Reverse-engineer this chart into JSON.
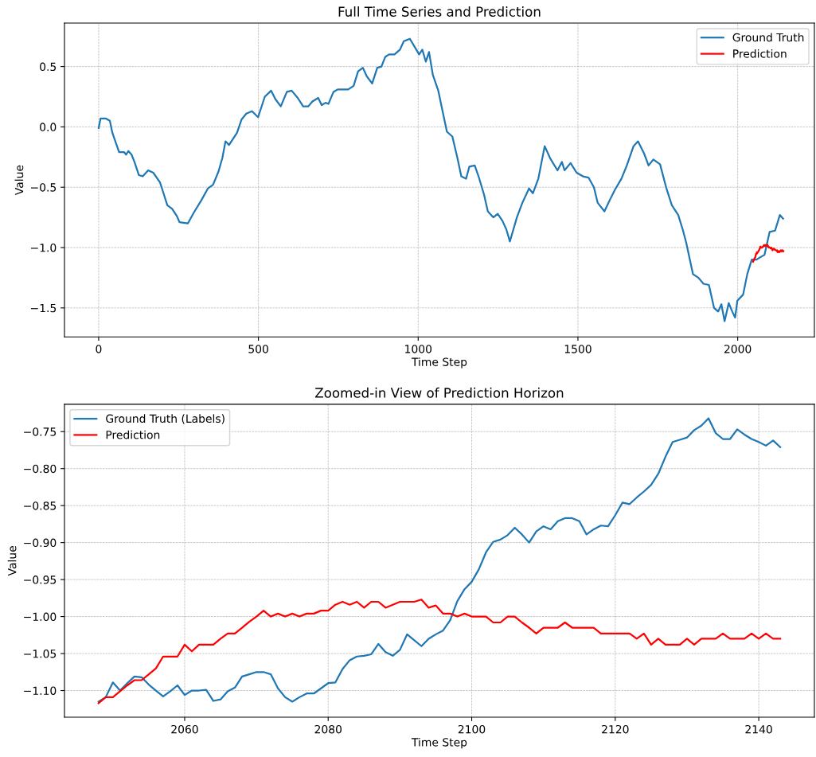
{
  "chart_data": [
    {
      "type": "line",
      "title": "Full Time Series and Prediction",
      "xlabel": "Time Step",
      "ylabel": "Value",
      "xlim": [
        -107,
        2240
      ],
      "ylim": [
        -1.74,
        0.86
      ],
      "xticks": [
        0,
        500,
        1000,
        1500,
        2000
      ],
      "yticks": [
        {
          "value": -1.5,
          "label": "−1.5"
        },
        {
          "value": -1.0,
          "label": "−1.0"
        },
        {
          "value": -0.5,
          "label": "−0.5"
        },
        {
          "value": 0.0,
          "label": "0.0"
        },
        {
          "value": 0.5,
          "label": "0.5"
        }
      ],
      "grid": true,
      "legend": "top right",
      "line_style": "solid",
      "marker": "none",
      "series": [
        {
          "name": "Ground Truth",
          "color": "#1f77b4",
          "x": [
            0,
            6,
            22,
            35,
            43,
            51,
            64,
            80,
            86,
            93,
            103,
            112,
            126,
            138,
            155,
            171,
            192,
            203,
            215,
            230,
            245,
            253,
            279,
            298,
            321,
            342,
            358,
            375,
            387,
            397,
            408,
            433,
            447,
            462,
            480,
            499,
            520,
            540,
            553,
            570,
            589,
            604,
            623,
            640,
            656,
            669,
            687,
            698,
            710,
            719,
            735,
            748,
            781,
            798,
            812,
            827,
            839,
            856,
            872,
            885,
            897,
            909,
            926,
            943,
            955,
            974,
            992,
            1003,
            1013,
            1024,
            1034,
            1046,
            1063,
            1078,
            1090,
            1107,
            1123,
            1135,
            1150,
            1160,
            1177,
            1189,
            1206,
            1218,
            1235,
            1249,
            1264,
            1276,
            1287,
            1309,
            1326,
            1347,
            1359,
            1376,
            1396,
            1413,
            1436,
            1450,
            1458,
            1477,
            1496,
            1516,
            1533,
            1550,
            1562,
            1583,
            1599,
            1616,
            1636,
            1653,
            1674,
            1688,
            1707,
            1721,
            1736,
            1757,
            1777,
            1794,
            1814,
            1829,
            1839,
            1860,
            1877,
            1893,
            1910,
            1926,
            1939,
            1949,
            1959,
            1972,
            1983,
            1992,
            1999,
            2017,
            2030,
            2044,
            2059,
            2071,
            2084,
            2100,
            2117,
            2132,
            2142
          ],
          "values": [
            -0.01,
            0.07,
            0.07,
            0.05,
            -0.05,
            -0.11,
            -0.21,
            -0.21,
            -0.23,
            -0.2,
            -0.23,
            -0.29,
            -0.4,
            -0.41,
            -0.36,
            -0.38,
            -0.46,
            -0.55,
            -0.65,
            -0.68,
            -0.74,
            -0.79,
            -0.8,
            -0.71,
            -0.61,
            -0.51,
            -0.48,
            -0.37,
            -0.26,
            -0.12,
            -0.15,
            -0.05,
            0.06,
            0.11,
            0.13,
            0.08,
            0.25,
            0.3,
            0.23,
            0.17,
            0.29,
            0.3,
            0.24,
            0.17,
            0.17,
            0.21,
            0.24,
            0.18,
            0.2,
            0.19,
            0.29,
            0.31,
            0.31,
            0.34,
            0.46,
            0.49,
            0.42,
            0.36,
            0.49,
            0.5,
            0.58,
            0.6,
            0.6,
            0.64,
            0.71,
            0.73,
            0.65,
            0.6,
            0.64,
            0.54,
            0.62,
            0.43,
            0.3,
            0.11,
            -0.04,
            -0.08,
            -0.26,
            -0.41,
            -0.43,
            -0.33,
            -0.32,
            -0.41,
            -0.56,
            -0.7,
            -0.75,
            -0.72,
            -0.78,
            -0.85,
            -0.95,
            -0.75,
            -0.63,
            -0.51,
            -0.55,
            -0.43,
            -0.16,
            -0.26,
            -0.36,
            -0.29,
            -0.36,
            -0.3,
            -0.38,
            -0.41,
            -0.42,
            -0.5,
            -0.63,
            -0.7,
            -0.61,
            -0.52,
            -0.43,
            -0.32,
            -0.16,
            -0.12,
            -0.22,
            -0.32,
            -0.27,
            -0.31,
            -0.51,
            -0.65,
            -0.73,
            -0.86,
            -0.96,
            -1.22,
            -1.25,
            -1.3,
            -1.31,
            -1.5,
            -1.53,
            -1.47,
            -1.61,
            -1.46,
            -1.53,
            -1.58,
            -1.44,
            -1.39,
            -1.22,
            -1.1,
            -1.1,
            -1.08,
            -1.06,
            -0.87,
            -0.86,
            -0.73,
            -0.76
          ]
        },
        {
          "name": "Prediction",
          "color": "#ff0000",
          "x": [
            2048,
            2049,
            2050,
            2051,
            2052,
            2053,
            2054,
            2055,
            2056,
            2057,
            2058,
            2059,
            2060,
            2061,
            2062,
            2063,
            2064,
            2065,
            2066,
            2067,
            2068,
            2069,
            2070,
            2071,
            2072,
            2073,
            2074,
            2075,
            2076,
            2077,
            2078,
            2079,
            2080,
            2081,
            2082,
            2083,
            2084,
            2085,
            2086,
            2087,
            2088,
            2089,
            2090,
            2091,
            2092,
            2093,
            2094,
            2095,
            2096,
            2097,
            2098,
            2099,
            2100,
            2101,
            2102,
            2103,
            2104,
            2105,
            2106,
            2107,
            2108,
            2109,
            2110,
            2111,
            2112,
            2113,
            2114,
            2115,
            2116,
            2117,
            2118,
            2119,
            2120,
            2121,
            2122,
            2123,
            2124,
            2125,
            2126,
            2127,
            2128,
            2129,
            2130,
            2131,
            2132,
            2133,
            2134,
            2135,
            2136,
            2137,
            2138,
            2139,
            2140,
            2141,
            2142,
            2143
          ],
          "values": [
            -1.117,
            -1.109,
            -1.109,
            -1.101,
            -1.093,
            -1.086,
            -1.086,
            -1.078,
            -1.07,
            -1.054,
            -1.054,
            -1.054,
            -1.038,
            -1.047,
            -1.038,
            -1.038,
            -1.038,
            -1.03,
            -1.023,
            -1.023,
            -1.015,
            -1.007,
            -1.0,
            -0.992,
            -1.0,
            -0.996,
            -1.0,
            -0.996,
            -1.0,
            -0.996,
            -0.996,
            -0.992,
            -0.992,
            -0.984,
            -0.98,
            -0.984,
            -0.98,
            -0.988,
            -0.98,
            -0.98,
            -0.988,
            -0.984,
            -0.98,
            -0.98,
            -0.98,
            -0.977,
            -0.988,
            -0.985,
            -0.996,
            -0.996,
            -1.0,
            -0.996,
            -1.0,
            -1.0,
            -1.0,
            -1.008,
            -1.008,
            -1.0,
            -1.0,
            -1.008,
            -1.015,
            -1.023,
            -1.015,
            -1.015,
            -1.015,
            -1.008,
            -1.015,
            -1.015,
            -1.015,
            -1.015,
            -1.023,
            -1.023,
            -1.023,
            -1.023,
            -1.023,
            -1.03,
            -1.023,
            -1.038,
            -1.03,
            -1.038,
            -1.038,
            -1.038,
            -1.03,
            -1.038,
            -1.03,
            -1.03,
            -1.03,
            -1.023,
            -1.03,
            -1.03,
            -1.03,
            -1.023,
            -1.03,
            -1.023,
            -1.03,
            -1.03
          ]
        }
      ]
    },
    {
      "type": "line",
      "title": "Zoomed-in View of Prediction Horizon",
      "xlabel": "Time Step",
      "ylabel": "Value",
      "xlim": [
        2043.25,
        2147.75
      ],
      "ylim": [
        -1.136,
        -0.713
      ],
      "xticks": [
        2060,
        2080,
        2100,
        2120,
        2140
      ],
      "yticks": [
        {
          "value": -1.1,
          "label": "−1.10"
        },
        {
          "value": -1.05,
          "label": "−1.05"
        },
        {
          "value": -1.0,
          "label": "−1.00"
        },
        {
          "value": -0.95,
          "label": "−0.95"
        },
        {
          "value": -0.9,
          "label": "−0.90"
        },
        {
          "value": -0.85,
          "label": "−0.85"
        },
        {
          "value": -0.8,
          "label": "−0.80"
        },
        {
          "value": -0.75,
          "label": "−0.75"
        }
      ],
      "grid": true,
      "legend": "top left",
      "line_style": "solid",
      "marker": "none",
      "x": [
        2048,
        2049,
        2050,
        2051,
        2052,
        2053,
        2054,
        2055,
        2056,
        2057,
        2058,
        2059,
        2060,
        2061,
        2062,
        2063,
        2064,
        2065,
        2066,
        2067,
        2068,
        2069,
        2070,
        2071,
        2072,
        2073,
        2074,
        2075,
        2076,
        2077,
        2078,
        2079,
        2080,
        2081,
        2082,
        2083,
        2084,
        2085,
        2086,
        2087,
        2088,
        2089,
        2090,
        2091,
        2092,
        2093,
        2094,
        2095,
        2096,
        2097,
        2098,
        2099,
        2100,
        2101,
        2102,
        2103,
        2104,
        2105,
        2106,
        2107,
        2108,
        2109,
        2110,
        2111,
        2112,
        2113,
        2114,
        2115,
        2116,
        2117,
        2118,
        2119,
        2120,
        2121,
        2122,
        2123,
        2124,
        2125,
        2126,
        2127,
        2128,
        2129,
        2130,
        2131,
        2132,
        2133,
        2134,
        2135,
        2136,
        2137,
        2138,
        2139,
        2140,
        2141,
        2142,
        2143
      ],
      "series": [
        {
          "name": "Ground Truth (Labels)",
          "color": "#1f77b4",
          "values": [
            -1.115,
            -1.109,
            -1.089,
            -1.1,
            -1.09,
            -1.081,
            -1.082,
            -1.092,
            -1.1,
            -1.108,
            -1.101,
            -1.093,
            -1.106,
            -1.1,
            -1.1,
            -1.099,
            -1.114,
            -1.112,
            -1.101,
            -1.096,
            -1.081,
            -1.078,
            -1.075,
            -1.075,
            -1.078,
            -1.097,
            -1.109,
            -1.115,
            -1.109,
            -1.104,
            -1.104,
            -1.097,
            -1.09,
            -1.089,
            -1.071,
            -1.059,
            -1.054,
            -1.053,
            -1.051,
            -1.037,
            -1.048,
            -1.053,
            -1.045,
            -1.024,
            -1.032,
            -1.04,
            -1.03,
            -1.024,
            -1.019,
            -1.005,
            -0.979,
            -0.963,
            -0.953,
            -0.936,
            -0.913,
            -0.899,
            -0.896,
            -0.89,
            -0.88,
            -0.889,
            -0.9,
            -0.885,
            -0.878,
            -0.882,
            -0.871,
            -0.867,
            -0.867,
            -0.871,
            -0.889,
            -0.882,
            -0.877,
            -0.878,
            -0.863,
            -0.846,
            -0.848,
            -0.839,
            -0.831,
            -0.822,
            -0.807,
            -0.784,
            -0.764,
            -0.761,
            -0.758,
            -0.748,
            -0.742,
            -0.732,
            -0.752,
            -0.76,
            -0.76,
            -0.747,
            -0.754,
            -0.76,
            -0.764,
            -0.769,
            -0.762,
            -0.771
          ]
        },
        {
          "name": "Prediction",
          "color": "#ff0000",
          "values": [
            -1.117,
            -1.109,
            -1.109,
            -1.101,
            -1.093,
            -1.086,
            -1.086,
            -1.078,
            -1.07,
            -1.054,
            -1.054,
            -1.054,
            -1.038,
            -1.047,
            -1.038,
            -1.038,
            -1.038,
            -1.03,
            -1.023,
            -1.023,
            -1.015,
            -1.007,
            -1.0,
            -0.992,
            -1.0,
            -0.996,
            -1.0,
            -0.996,
            -1.0,
            -0.996,
            -0.996,
            -0.992,
            -0.992,
            -0.984,
            -0.98,
            -0.984,
            -0.98,
            -0.988,
            -0.98,
            -0.98,
            -0.988,
            -0.984,
            -0.98,
            -0.98,
            -0.98,
            -0.977,
            -0.988,
            -0.985,
            -0.996,
            -0.996,
            -1.0,
            -0.996,
            -1.0,
            -1.0,
            -1.0,
            -1.008,
            -1.008,
            -1.0,
            -1.0,
            -1.008,
            -1.015,
            -1.023,
            -1.015,
            -1.015,
            -1.015,
            -1.008,
            -1.015,
            -1.015,
            -1.015,
            -1.015,
            -1.023,
            -1.023,
            -1.023,
            -1.023,
            -1.023,
            -1.03,
            -1.023,
            -1.038,
            -1.03,
            -1.038,
            -1.038,
            -1.038,
            -1.03,
            -1.038,
            -1.03,
            -1.03,
            -1.03,
            -1.023,
            -1.03,
            -1.03,
            -1.03,
            -1.023,
            -1.03,
            -1.023,
            -1.03,
            -1.03
          ]
        }
      ]
    }
  ]
}
